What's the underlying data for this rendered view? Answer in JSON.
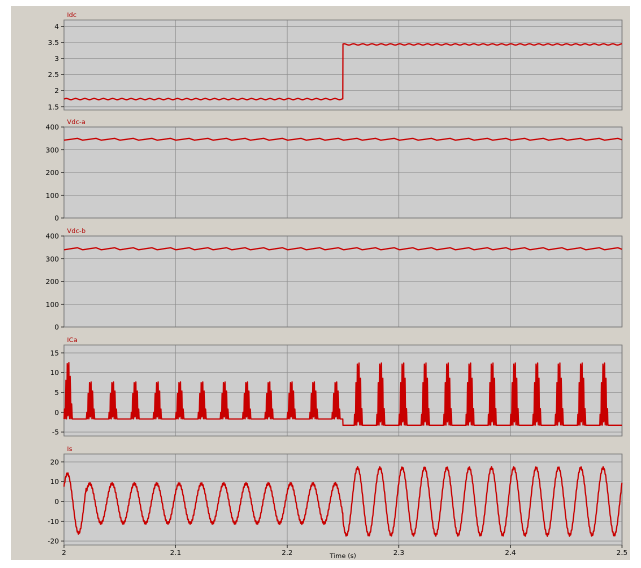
{
  "chart_data": {
    "type": "line",
    "xlabel": "Time (s)",
    "x_ticks": [
      "2",
      "2.1",
      "2.2",
      "2.3",
      "2.4",
      "2.5"
    ],
    "xlim": [
      2.0,
      2.5
    ],
    "grid": true,
    "colors": {
      "figure_bg": "#d4d0c8",
      "plot_bg": "#cdcdcd",
      "grid": "#8c8c8c",
      "trace": "#c80000",
      "label": "#b00000"
    },
    "panels": [
      {
        "name": "Idc",
        "ylim": [
          1.4,
          4.2
        ],
        "yticks": [
          1.5,
          2,
          2.5,
          3,
          3.5,
          4
        ],
        "ytick_labels": [
          "1.5",
          "2",
          "2.5",
          "3",
          "3.5",
          "4"
        ],
        "signal": {
          "kind": "step",
          "before": 1.74,
          "after": 3.44,
          "step_time": 2.25,
          "ripple": 0.02,
          "ripple_period": 0.0083
        }
      },
      {
        "name": "Vdc-a",
        "ylim": [
          0,
          400
        ],
        "yticks": [
          0,
          100,
          200,
          300,
          400
        ],
        "ytick_labels": [
          "0",
          "100",
          "200",
          "300",
          "400"
        ],
        "signal": {
          "kind": "sawtooth",
          "mean": 346,
          "amplitude": 8,
          "period": 0.0167
        }
      },
      {
        "name": "Vdc-b",
        "ylim": [
          0,
          400
        ],
        "yticks": [
          0,
          100,
          200,
          300,
          400
        ],
        "ytick_labels": [
          "0",
          "100",
          "200",
          "300",
          "400"
        ],
        "signal": {
          "kind": "sawtooth",
          "mean": 344,
          "amplitude": 9,
          "period": 0.0167
        }
      },
      {
        "name": "ICa",
        "ylim": [
          -6,
          17
        ],
        "yticks": [
          -5,
          0,
          5,
          10,
          15
        ],
        "ytick_labels": [
          "-5",
          "0",
          "5",
          "10",
          "15"
        ],
        "signal": {
          "kind": "pulses",
          "period": 0.02,
          "width": 0.0075,
          "before": {
            "base": -1.7,
            "peak": 8.3,
            "first_peak": 13.5
          },
          "after": {
            "base": -3.3,
            "peak": 13.5
          },
          "step_time": 2.25
        }
      },
      {
        "name": "Is",
        "ylim": [
          -22,
          24
        ],
        "yticks": [
          -20,
          -10,
          0,
          10,
          20
        ],
        "ytick_labels": [
          "-20",
          "-10",
          "0",
          "10",
          "20"
        ],
        "signal": {
          "kind": "sine",
          "period": 0.02,
          "before": {
            "amplitude": 10,
            "offset": -1
          },
          "after": {
            "amplitude": 17,
            "offset": 0
          },
          "first_peak": 15,
          "step_time": 2.25
        }
      }
    ]
  }
}
